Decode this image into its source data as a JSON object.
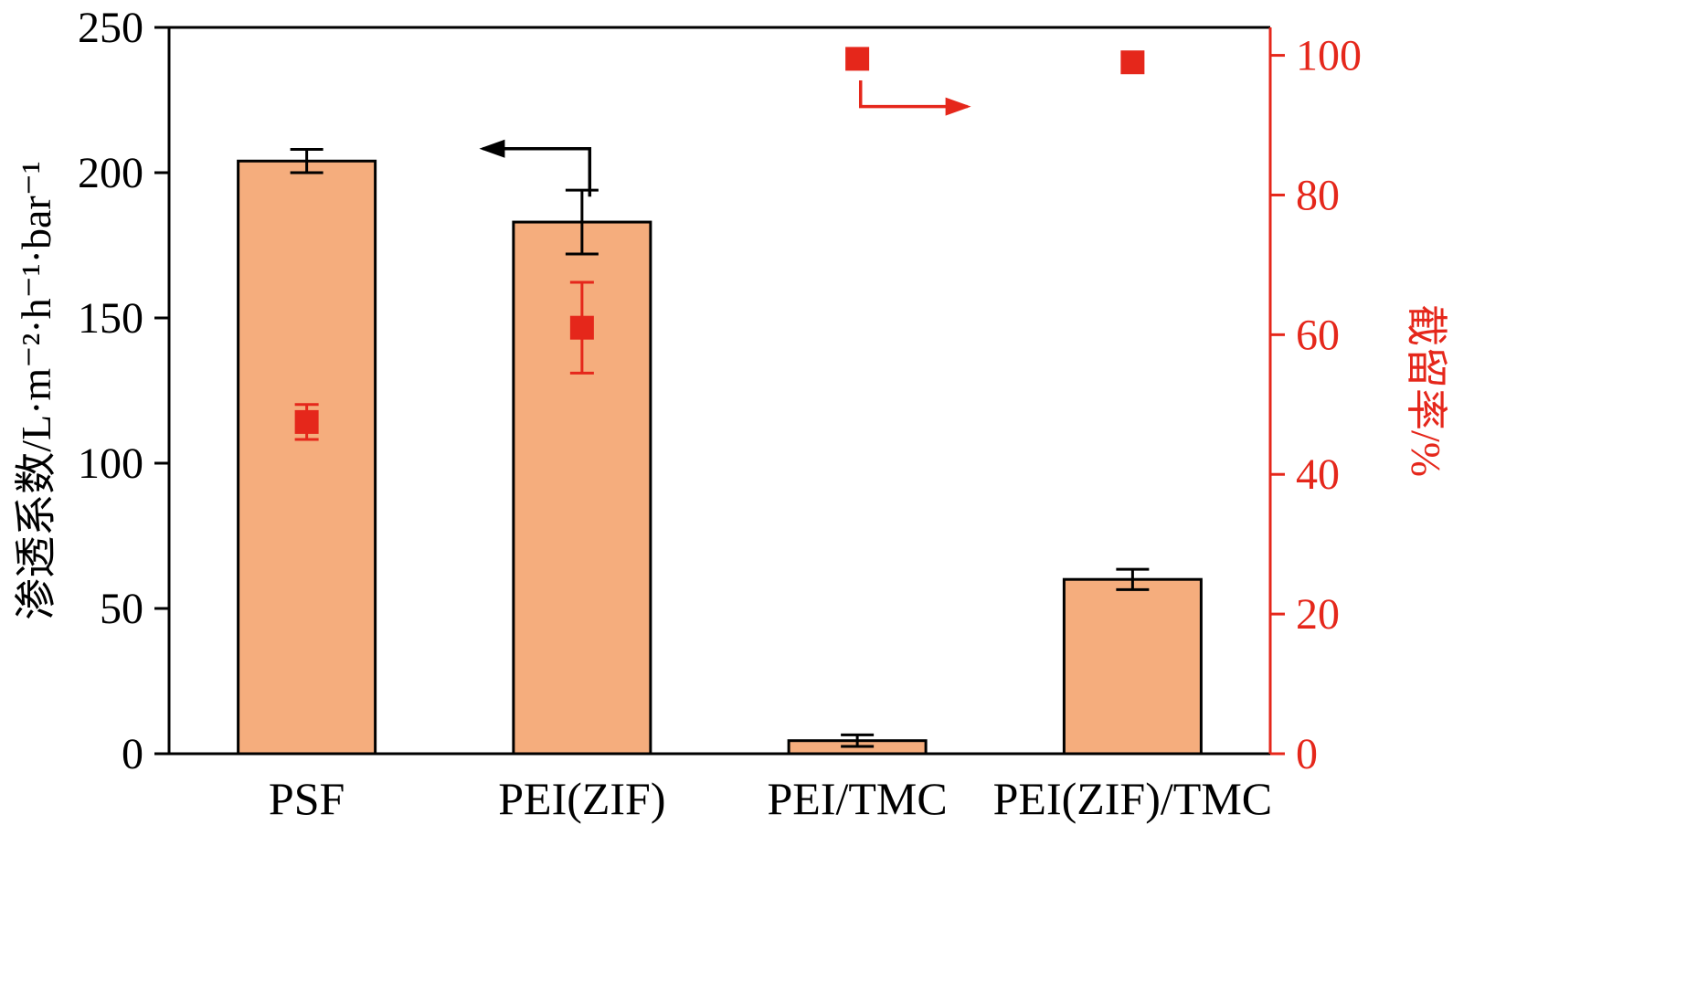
{
  "figure": {
    "background": "#ffffff"
  },
  "chart_data": {
    "type": "bar",
    "categories": [
      "PSF",
      "PEI(ZIF)",
      "PEI/TMC",
      "PEI(ZIF)/TMC"
    ],
    "series": [
      {
        "name": "permeation-coefficient-bars",
        "type": "bar",
        "axis": "left",
        "values": [
          204,
          183,
          4.5,
          60
        ],
        "errors": [
          4,
          11,
          2,
          3.5
        ],
        "fill": "#F5AD7D",
        "stroke": "#000000"
      },
      {
        "name": "rejection-rate-markers",
        "type": "scatter",
        "axis": "right",
        "marker": "square",
        "values": [
          47.5,
          61,
          99.5,
          99
        ],
        "errors": [
          2.5,
          6.5,
          0,
          0
        ],
        "color": "#E5271B"
      }
    ],
    "left_axis": {
      "label": "渗透系数/L·m⁻²·h⁻¹·bar⁻¹",
      "min": 0,
      "max": 250,
      "ticks": [
        0,
        50,
        100,
        150,
        200,
        250
      ],
      "color": "#000000"
    },
    "right_axis": {
      "label": "截留率/%",
      "min": 0,
      "max": 104,
      "ticks": [
        0,
        20,
        40,
        60,
        80,
        100
      ],
      "color": "#E5271B"
    },
    "grid": false,
    "legend": "none",
    "annotations": [
      {
        "id": "left-axis-arrow",
        "color": "#000000",
        "points_frac": [
          [
            0.382,
            0.233
          ],
          [
            0.382,
            0.167
          ],
          [
            0.285,
            0.167
          ]
        ]
      },
      {
        "id": "right-axis-arrow",
        "color": "#E5271B",
        "points_frac": [
          [
            0.628,
            0.073
          ],
          [
            0.628,
            0.109
          ],
          [
            0.725,
            0.109
          ]
        ]
      }
    ]
  }
}
